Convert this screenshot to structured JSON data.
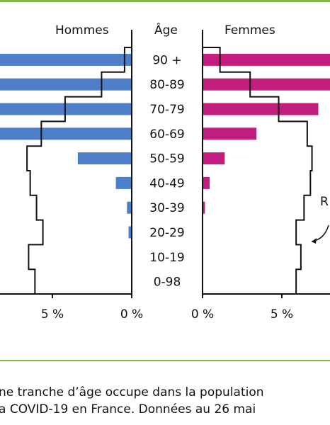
{
  "headers": {
    "left": "Hommes",
    "middle": "Âge",
    "right": "Femmes"
  },
  "cut_label": "R",
  "caption": {
    "line1": "ne tranche d’âge occupe dans la population",
    "line2": "a COVID-19 en France. Données au 26 mai"
  },
  "colors": {
    "men": "#4f7fc9",
    "women": "#c21d7f",
    "border": "#7fb84a",
    "outline": "#111111"
  },
  "chart_data": {
    "type": "bar",
    "categories": [
      "90 +",
      "80-89",
      "70-79",
      "60-69",
      "50-59",
      "40-49",
      "30-39",
      "20-29",
      "10-19",
      "0-98"
    ],
    "series": [
      {
        "values": [
          9.0,
          9.0,
          9.0,
          9.0,
          3.4,
          1.0,
          0.3,
          0.2,
          0.0,
          0.0
        ]
      },
      {
        "values": [
          9.0,
          9.0,
          7.3,
          3.4,
          1.4,
          0.45,
          0.15,
          0.0,
          0.0,
          0.0
        ]
      }
    ],
    "population_outline": {
      "men": [
        0.45,
        1.9,
        4.2,
        5.7,
        6.6,
        6.4,
        6.0,
        5.6,
        6.5,
        6.1
      ],
      "women": [
        1.1,
        3.0,
        4.8,
        6.6,
        6.9,
        6.8,
        6.4,
        5.9,
        6.2,
        5.9
      ]
    },
    "xticks": [
      "5 %",
      "0 %",
      "0 %",
      "5 %"
    ],
    "xlim": [
      0,
      9
    ]
  }
}
